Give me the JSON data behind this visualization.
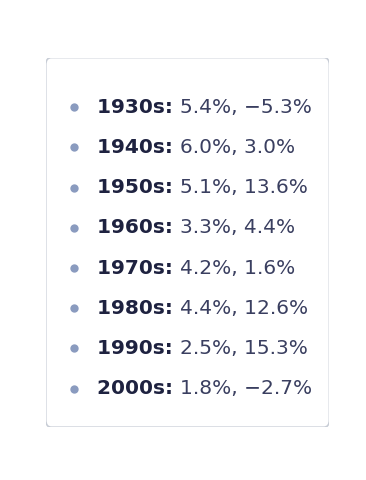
{
  "entries": [
    {
      "decade": "1930s",
      "dividend": "5.4%",
      "price": "−5.3%"
    },
    {
      "decade": "1940s",
      "dividend": "6.0%",
      "price": "3.0%"
    },
    {
      "decade": "1950s",
      "dividend": "5.1%",
      "price": "13.6%"
    },
    {
      "decade": "1960s",
      "dividend": "3.3%",
      "price": "4.4%"
    },
    {
      "decade": "1970s",
      "dividend": "4.2%",
      "price": "1.6%"
    },
    {
      "decade": "1980s",
      "dividend": "4.4%",
      "price": "12.6%"
    },
    {
      "decade": "1990s",
      "dividend": "2.5%",
      "price": "15.3%"
    },
    {
      "decade": "2000s",
      "dividend": "1.8%",
      "price": "−2.7%"
    }
  ],
  "background_color": "#ffffff",
  "border_color": "#c8cdd6",
  "bullet_color": "#8a9bbf",
  "decade_color": "#1e2240",
  "values_color": "#3a3f60",
  "fontsize": 14.5,
  "bullet_size": 6,
  "fig_width": 3.66,
  "fig_height": 4.8,
  "dpi": 100
}
